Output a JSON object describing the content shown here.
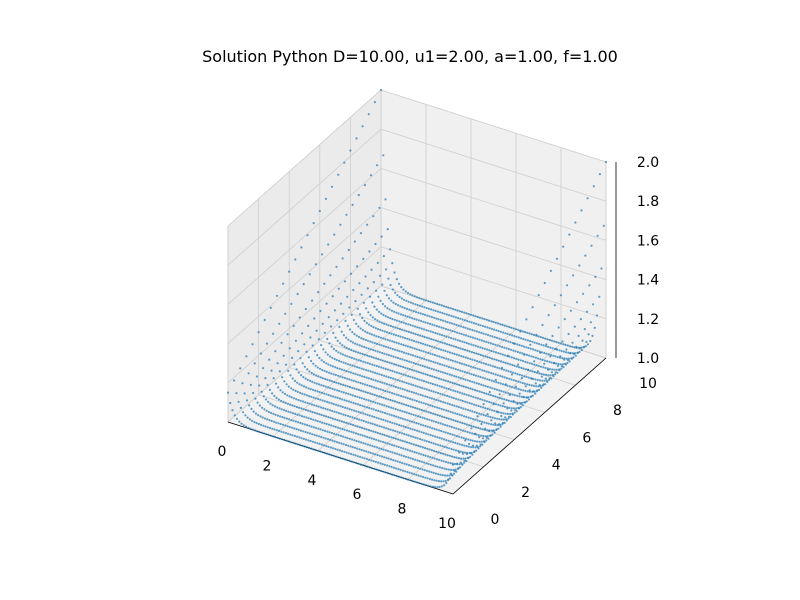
{
  "chart_data": {
    "type": "scatter",
    "projection": "3d",
    "title": "Solution Python  D=10.00, u1=2.00, a=1.00, f=1.00",
    "xlabel": "",
    "ylabel": "",
    "zlabel": "",
    "xlim": [
      0,
      10
    ],
    "ylim": [
      0,
      10
    ],
    "zlim": [
      1.0,
      2.0
    ],
    "x_ticks": [
      "0",
      "2",
      "4",
      "6",
      "8",
      "10"
    ],
    "y_ticks": [
      "0",
      "2",
      "4",
      "6",
      "8",
      "10"
    ],
    "z_ticks": [
      "1.0",
      "1.2",
      "1.4",
      "1.6",
      "1.8",
      "2.0"
    ],
    "grid": true,
    "marker_color": "#1f77b4",
    "surface": {
      "description": "u(x,y) values along rows of constant y",
      "boundary_value_x0": 1.0,
      "boundary_value_x10": 2.0,
      "interior_min": 1.0,
      "rows_y": [
        0,
        0.4,
        0.8,
        1.2,
        1.6,
        2.0,
        2.4,
        2.8,
        3.2,
        3.6,
        4.0,
        4.4,
        4.8,
        5.2,
        5.6,
        6.0,
        6.4,
        6.8,
        7.2,
        7.6,
        8.0,
        8.4,
        8.8,
        9.2,
        9.6,
        10.0
      ],
      "points_per_row": 100
    }
  }
}
